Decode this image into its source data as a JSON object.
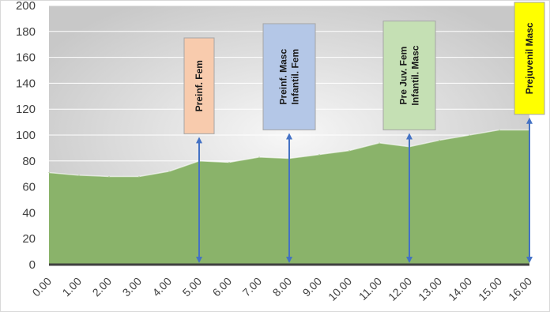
{
  "chart_data": {
    "type": "area",
    "title": "",
    "xlabel": "",
    "ylabel": "",
    "x": [
      0,
      1,
      2,
      3,
      4,
      5,
      6,
      7,
      8,
      9,
      10,
      11,
      12,
      13,
      14,
      15,
      16
    ],
    "x_tick_labels": [
      "0.00",
      "1.00",
      "2.00",
      "3.00",
      "4.00",
      "5.00",
      "6.00",
      "7.00",
      "8.00",
      "9.00",
      "10.00",
      "11.00",
      "12.00",
      "13.00",
      "14.00",
      "15.00",
      "16.00"
    ],
    "y_ticks": [
      0,
      20,
      40,
      60,
      80,
      100,
      120,
      140,
      160,
      180,
      200
    ],
    "ylim": [
      0,
      200
    ],
    "xlim": [
      0,
      16
    ],
    "grid": true,
    "legend": "none",
    "series": [
      {
        "color": "#8ab36a",
        "values": [
          71,
          69,
          68,
          68,
          72,
          80,
          79,
          83,
          82,
          85,
          88,
          94,
          91,
          96,
          100,
          104,
          104
        ]
      }
    ],
    "annotations": [
      {
        "lines": [
          "Preinf. Fem"
        ],
        "x": 5,
        "color": "#f8cbad",
        "top_value": 175,
        "bottom_value": 101
      },
      {
        "lines": [
          "Preinf. Masc",
          "Infantil. Fem"
        ],
        "x": 8,
        "color": "#b4c7e7",
        "top_value": 186,
        "bottom_value": 104
      },
      {
        "lines": [
          "Pre Juv. Fem",
          "Infantil. Masc"
        ],
        "x": 12,
        "color": "#c5e0b4",
        "top_value": 188,
        "bottom_value": 104
      },
      {
        "lines": [
          "Prejuvenil Masc"
        ],
        "x": 16,
        "color": "#ffff00",
        "top_value": 210,
        "bottom_value": 116
      }
    ],
    "colors": {
      "plot_bg_outer": "#c8c8c8",
      "plot_bg_inner": "#f7f7f7",
      "arrow": "#4472c4",
      "baseline": "#404040"
    }
  }
}
